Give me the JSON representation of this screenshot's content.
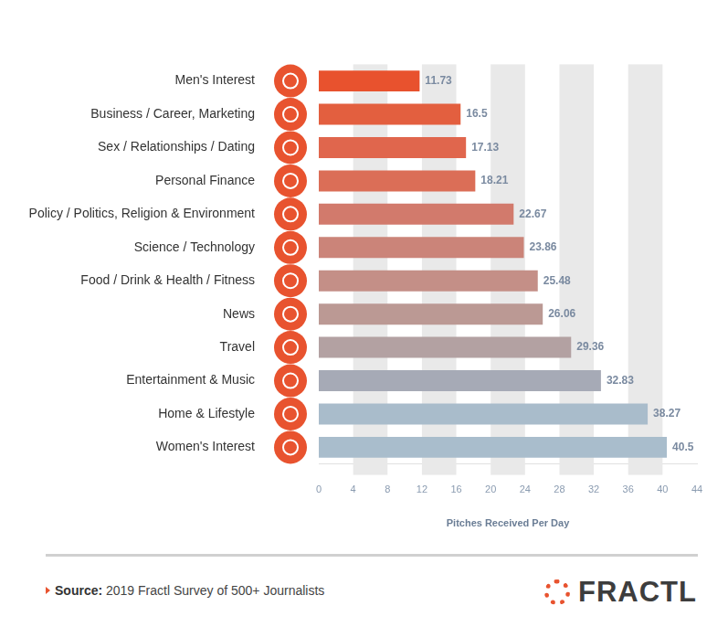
{
  "chart_data": {
    "type": "bar",
    "orientation": "horizontal",
    "categories": [
      "Men's Interest",
      "Business / Career, Marketing",
      "Sex / Relationships / Dating",
      "Personal Finance",
      "Policy / Politics, Religion & Environment",
      "Science / Technology",
      "Food / Drink & Health / Fitness",
      "News",
      "Travel",
      "Entertainment & Music",
      "Home & Lifestyle",
      "Women's Interest"
    ],
    "values": [
      11.73,
      16.5,
      17.13,
      18.21,
      22.67,
      23.86,
      25.48,
      26.06,
      29.36,
      32.83,
      38.27,
      40.5
    ],
    "colors": [
      "#e8522e",
      "#e35f3f",
      "#e0664d",
      "#db6e57",
      "#d27a6c",
      "#cb8479",
      "#c48f87",
      "#bb9994",
      "#b3a1a2",
      "#a6aab6",
      "#a9bccb",
      "#a9bdcc"
    ],
    "x_label": "Pitches Received Per Day",
    "xlim": [
      0,
      44
    ],
    "xticks": [
      0,
      4,
      8,
      12,
      16,
      20,
      24,
      28,
      32,
      36,
      40,
      44
    ],
    "grid": true,
    "data_labels": true
  },
  "footer": {
    "source_label": "Source:",
    "source": "2019 Fractl Survey of 500+ Journalists",
    "logo": "FRACTL"
  }
}
